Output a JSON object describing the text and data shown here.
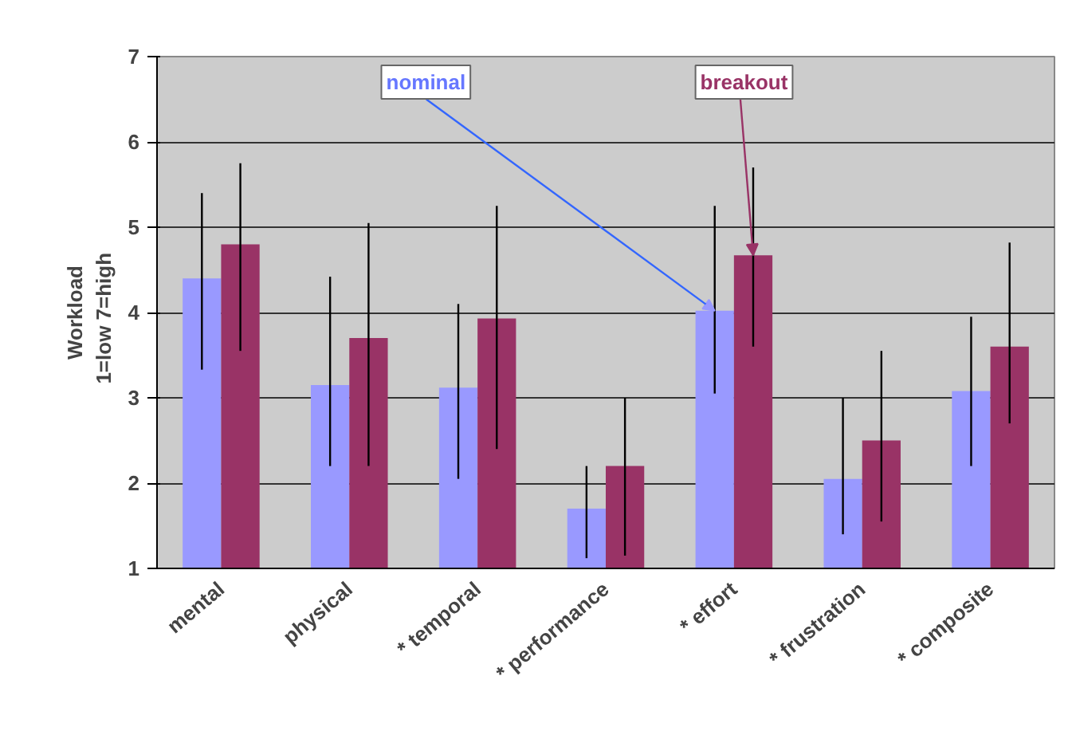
{
  "chart_data": {
    "type": "bar",
    "ylabel": "Workload\n1=low   7=high",
    "categories": [
      "mental",
      "physical",
      "* temporal",
      "* performance",
      "* effort",
      "* frustration",
      "* composite"
    ],
    "series": [
      {
        "name": "nominal",
        "color": "#9999ff",
        "values": [
          4.4,
          3.15,
          3.12,
          1.7,
          4.02,
          2.05,
          3.08
        ],
        "errors": [
          [
            3.33,
            5.4
          ],
          [
            2.2,
            4.42
          ],
          [
            2.05,
            4.1
          ],
          [
            1.12,
            2.2
          ],
          [
            3.05,
            5.25
          ],
          [
            1.4,
            3.0
          ],
          [
            2.2,
            3.95
          ]
        ]
      },
      {
        "name": "breakout",
        "color": "#993366",
        "values": [
          4.8,
          3.7,
          3.93,
          2.2,
          4.67,
          2.5,
          3.6
        ],
        "errors": [
          [
            3.55,
            5.75
          ],
          [
            2.2,
            5.05
          ],
          [
            2.4,
            5.25
          ],
          [
            1.15,
            3.0
          ],
          [
            3.6,
            5.7
          ],
          [
            1.55,
            3.55
          ],
          [
            2.7,
            4.82
          ]
        ]
      }
    ],
    "ylim": [
      1,
      7
    ],
    "yticks": [
      1,
      2,
      3,
      4,
      5,
      6,
      7
    ],
    "grid": "y"
  }
}
